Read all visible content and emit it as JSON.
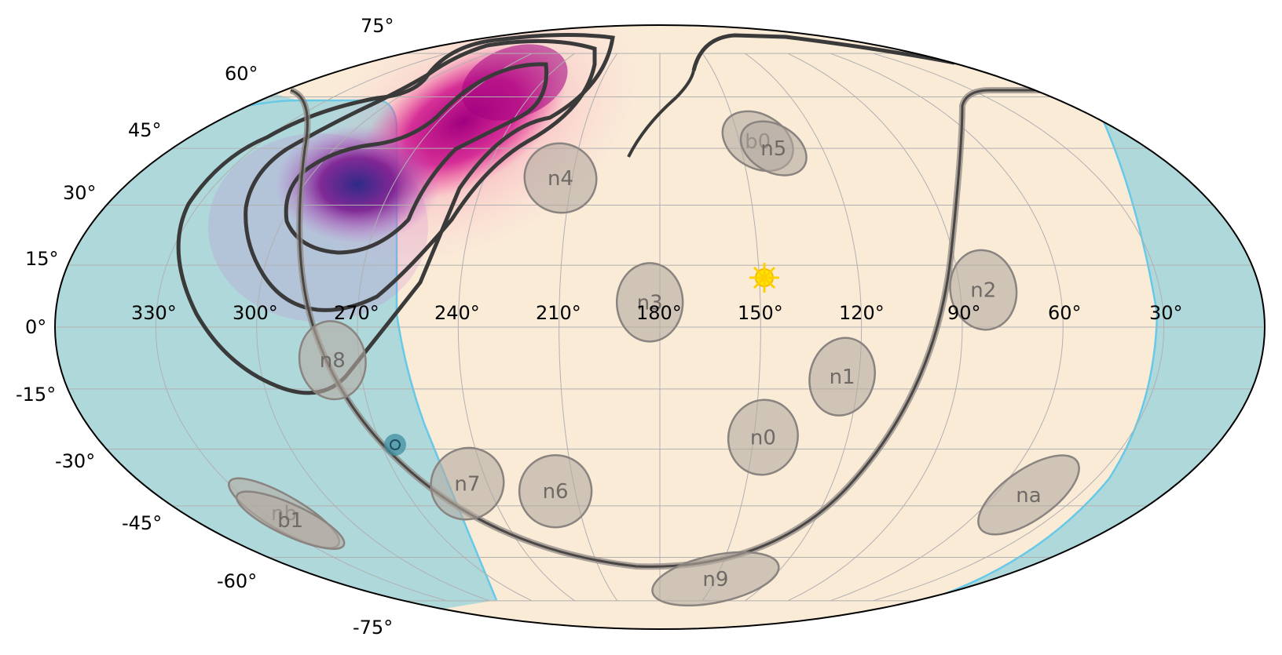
{
  "map": {
    "projection": "mollweide",
    "lat_labels": [
      "75°",
      "60°",
      "45°",
      "30°",
      "15°",
      "0°",
      "-15°",
      "-30°",
      "-45°",
      "-60°",
      "-75°"
    ],
    "lon_labels": [
      "330°",
      "300°",
      "270°",
      "240°",
      "210°",
      "180°",
      "150°",
      "120°",
      "90°",
      "60°",
      "30°"
    ],
    "detectors": [
      {
        "label": "n4",
        "ra": 214,
        "dec": 37
      },
      {
        "label": "b0",
        "ra": 143,
        "dec": 47
      },
      {
        "label": "n5",
        "ra": 138,
        "dec": 45
      },
      {
        "label": "n3",
        "ra": 183,
        "dec": 6
      },
      {
        "label": "n2",
        "ra": 83,
        "dec": 9
      },
      {
        "label": "n8",
        "ra": 278,
        "dec": -8
      },
      {
        "label": "n1",
        "ra": 125,
        "dec": -12
      },
      {
        "label": "n0",
        "ra": 147,
        "dec": -27
      },
      {
        "label": "n7",
        "ra": 247,
        "dec": -39
      },
      {
        "label": "n6",
        "ra": 217,
        "dec": -41
      },
      {
        "label": "nb",
        "ra": 322,
        "dec": -47
      },
      {
        "label": "b1",
        "ra": 323,
        "dec": -49
      },
      {
        "label": "na",
        "ra": 48,
        "dec": -42
      },
      {
        "label": "n9",
        "ra": 150,
        "dec": -67
      }
    ],
    "sun": {
      "ra": 149,
      "dec": 12,
      "color": "#ffe600"
    },
    "moon_marker": {
      "ra": 270,
      "dec": -28
    },
    "colors": {
      "sky": "#faebd7",
      "earth_occultation": "#afd8db",
      "occultation_edge": "#67c9e8",
      "detector_fill": "#b4aaa0",
      "contour": "#3a3a3a",
      "grid": "#b0b0b0",
      "prob_high": "#2e2a87",
      "prob_mid": "#a0007f",
      "prob_low": "#f64d9b"
    }
  }
}
